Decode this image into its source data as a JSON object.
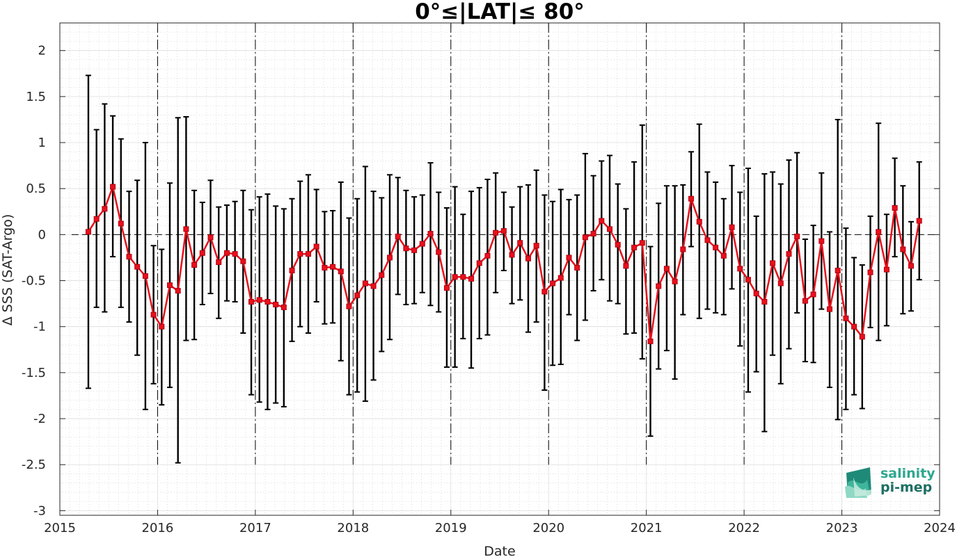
{
  "chart_data": {
    "type": "line",
    "title": "0°≤|LAT|≤ 80°",
    "xlabel": "Date",
    "ylabel": "Δ SSS (SAT-Argo)",
    "xlim": [
      2015.0,
      2024.0
    ],
    "ylim": [
      -3.05,
      2.3
    ],
    "x_ticks": [
      2015,
      2016,
      2017,
      2018,
      2019,
      2020,
      2021,
      2022,
      2023,
      2024
    ],
    "x_tick_labels": [
      "2015",
      "2016",
      "2017",
      "2018",
      "2019",
      "2020",
      "2021",
      "2022",
      "2023",
      "2024"
    ],
    "y_ticks": [
      -3,
      -2.5,
      -2,
      -1.5,
      -1,
      -0.5,
      0,
      0.5,
      1,
      1.5,
      2
    ],
    "y_tick_labels": [
      "-3",
      "-2.5",
      "-2",
      "-1.5",
      "-1",
      "-0.5",
      "0",
      "0.5",
      "1",
      "1.5",
      "2"
    ],
    "grid": true,
    "year_dividers": [
      2016,
      2017,
      2018,
      2019,
      2020,
      2021,
      2022,
      2023
    ],
    "colors": {
      "series": "#e8101c",
      "error_bars": "#000000",
      "grid": "#c8c8c8",
      "zero_line": "#000000"
    },
    "series": [
      {
        "marker": "square",
        "start_month": "2015-04",
        "values": [
          0.03,
          0.17,
          0.28,
          0.52,
          0.12,
          -0.24,
          -0.35,
          -0.45,
          -0.87,
          -1.0,
          -0.55,
          -0.61,
          0.06,
          -0.33,
          -0.2,
          -0.03,
          -0.3,
          -0.2,
          -0.21,
          -0.29,
          -0.73,
          -0.71,
          -0.73,
          -0.76,
          -0.79,
          -0.39,
          -0.21,
          -0.21,
          -0.13,
          -0.36,
          -0.35,
          -0.4,
          -0.78,
          -0.66,
          -0.53,
          -0.56,
          -0.44,
          -0.25,
          -0.02,
          -0.15,
          -0.17,
          -0.1,
          0.01,
          -0.19,
          -0.58,
          -0.46,
          -0.46,
          -0.48,
          -0.31,
          -0.23,
          0.02,
          0.04,
          -0.22,
          -0.09,
          -0.26,
          -0.12,
          -0.62,
          -0.53,
          -0.47,
          -0.25,
          -0.36,
          -0.03,
          0.01,
          0.15,
          0.06,
          -0.11,
          -0.34,
          -0.14,
          -0.09,
          -1.16,
          -0.56,
          -0.37,
          -0.51,
          -0.16,
          0.39,
          0.14,
          -0.06,
          -0.14,
          -0.23,
          0.08,
          -0.37,
          -0.49,
          -0.64,
          -0.73,
          -0.31,
          -0.53,
          -0.21,
          -0.02,
          -0.72,
          -0.65,
          -0.07,
          -0.81,
          -0.39,
          -0.91,
          -1.0,
          -1.11,
          -0.41,
          0.03,
          -0.38,
          0.29,
          -0.16,
          -0.34,
          0.15
        ],
        "lower": [
          -1.67,
          -0.79,
          -0.84,
          -0.24,
          -0.79,
          -0.95,
          -1.31,
          -1.9,
          -1.62,
          -1.85,
          -1.66,
          -2.48,
          -1.15,
          -1.14,
          -0.76,
          -0.64,
          -0.91,
          -0.72,
          -0.73,
          -1.07,
          -1.74,
          -1.82,
          -1.9,
          -1.83,
          -1.87,
          -1.16,
          -1.0,
          -1.07,
          -0.73,
          -0.97,
          -0.96,
          -1.37,
          -1.74,
          -1.71,
          -1.81,
          -1.58,
          -1.27,
          -1.14,
          -0.65,
          -0.76,
          -0.75,
          -0.63,
          -0.77,
          -0.84,
          -1.44,
          -1.44,
          -1.13,
          -1.45,
          -1.13,
          -1.09,
          -0.63,
          -0.39,
          -0.75,
          -0.71,
          -1.06,
          -0.95,
          -1.69,
          -1.42,
          -1.41,
          -0.87,
          -1.15,
          -0.93,
          -0.61,
          -0.49,
          -0.72,
          -0.75,
          -1.08,
          -1.07,
          -1.35,
          -2.19,
          -1.46,
          -1.26,
          -1.57,
          -0.87,
          -0.13,
          -0.91,
          -0.81,
          -0.85,
          -0.87,
          -0.59,
          -1.21,
          -1.71,
          -1.49,
          -2.14,
          -1.31,
          -1.62,
          -1.24,
          -0.85,
          -1.38,
          -1.39,
          -0.81,
          -1.66,
          -2.01,
          -1.9,
          -1.74,
          -1.89,
          -1.01,
          -1.15,
          -0.99,
          -0.24,
          -0.86,
          -0.83,
          -0.49
        ],
        "upper": [
          1.73,
          1.14,
          1.42,
          1.29,
          1.04,
          0.47,
          0.59,
          1.0,
          -0.12,
          -0.16,
          0.56,
          1.27,
          1.28,
          0.48,
          0.35,
          0.59,
          0.3,
          0.32,
          0.36,
          0.48,
          0.27,
          0.41,
          0.44,
          0.31,
          0.28,
          0.39,
          0.58,
          0.65,
          0.49,
          0.25,
          0.26,
          0.57,
          0.18,
          0.39,
          0.74,
          0.47,
          0.4,
          0.65,
          0.62,
          0.48,
          0.41,
          0.43,
          0.78,
          0.46,
          0.29,
          0.52,
          0.22,
          0.47,
          0.51,
          0.6,
          0.67,
          0.46,
          0.3,
          0.52,
          0.54,
          0.7,
          0.43,
          0.36,
          0.49,
          0.38,
          0.43,
          0.88,
          0.64,
          0.8,
          0.86,
          0.55,
          0.28,
          0.79,
          1.19,
          -0.13,
          0.34,
          0.53,
          0.53,
          0.54,
          0.9,
          1.2,
          0.68,
          0.57,
          0.39,
          0.75,
          0.46,
          0.72,
          0.2,
          0.66,
          0.68,
          0.55,
          0.81,
          0.89,
          -0.05,
          0.1,
          0.67,
          0.03,
          1.25,
          0.07,
          -0.25,
          -0.33,
          0.2,
          1.21,
          0.22,
          0.83,
          0.53,
          0.14,
          0.79
        ]
      }
    ]
  },
  "logo": {
    "line1": "salinity",
    "line2": "pi-mep"
  }
}
